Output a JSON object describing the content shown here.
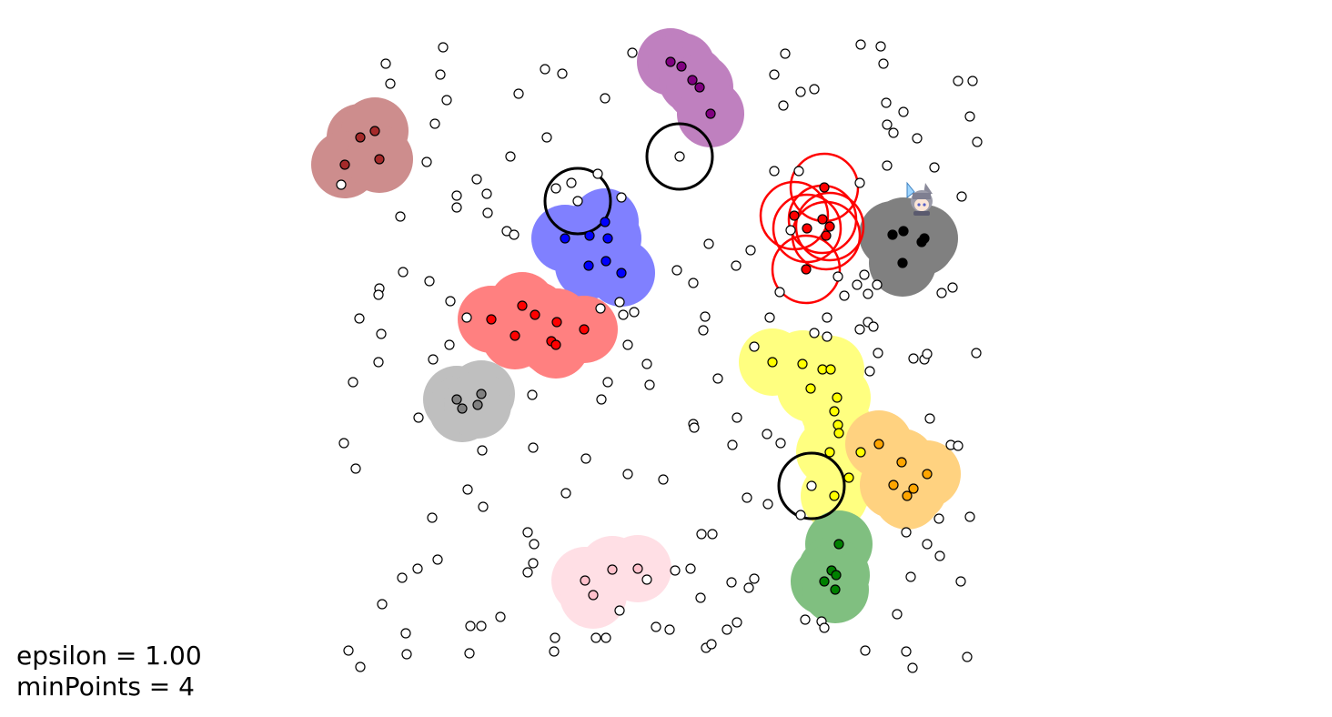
{
  "params": {
    "epsilon_text": "epsilon = 1.00",
    "minpoints_text": "minPoints = 4"
  },
  "icons": {
    "avatar": "chibi-avatar-icon"
  },
  "colors": {
    "noise_fill": "#ffffff",
    "point_stroke": "#000000",
    "active_ring": "#ff0000",
    "neighborhood_ring": "#000000"
  },
  "clusters": [
    {
      "name": "brown",
      "blob": "#cd8d8d",
      "dot": "#a52a2a"
    },
    {
      "name": "purple",
      "blob": "#bf80bf",
      "dot": "#800080"
    },
    {
      "name": "blue",
      "blob": "#8080ff",
      "dot": "#0000ff"
    },
    {
      "name": "red",
      "blob": "#ff8080",
      "dot": "#ff0000"
    },
    {
      "name": "silver",
      "blob": "#bfbfbf",
      "dot": "#808080"
    },
    {
      "name": "pink",
      "blob": "#ffdfe5",
      "dot": "#ffc0cb"
    },
    {
      "name": "yellow",
      "blob": "#ffff80",
      "dot": "#ffff00"
    },
    {
      "name": "orange",
      "blob": "#ffd280",
      "dot": "#ffa500"
    },
    {
      "name": "green",
      "blob": "#80bf80",
      "dot": "#008000"
    },
    {
      "name": "black",
      "blob": "#808080",
      "dot": "#000000"
    },
    {
      "name": "active",
      "blob": null,
      "dot": "#ff0000"
    }
  ]
}
